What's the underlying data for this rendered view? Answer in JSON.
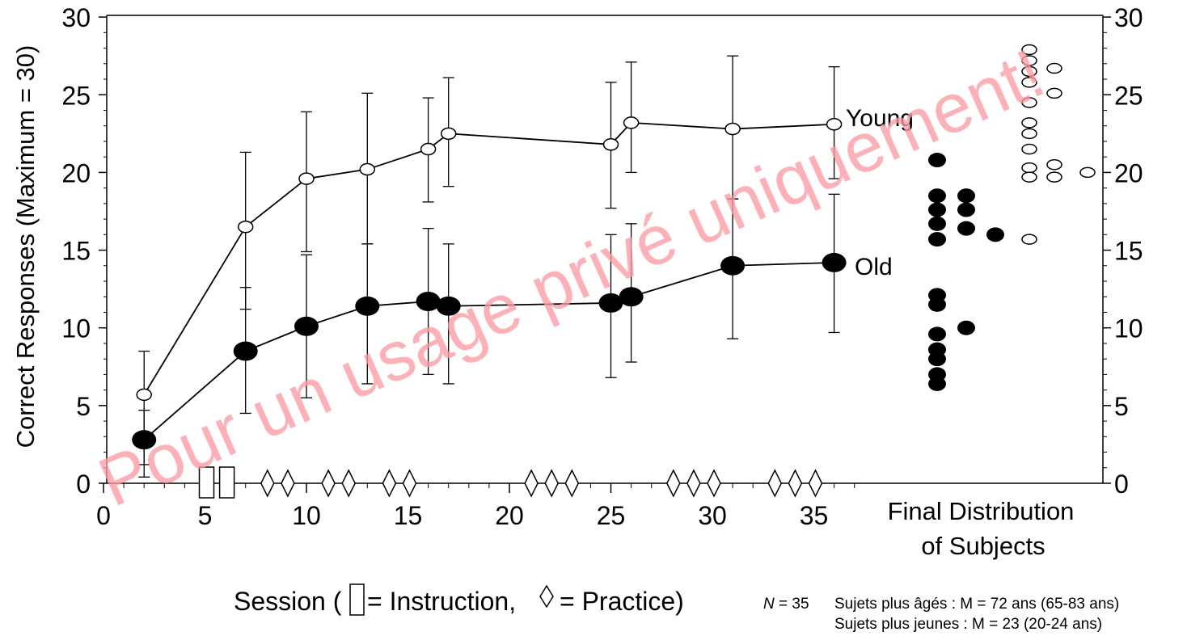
{
  "chart_data": {
    "type": "line",
    "ylabel": "Correct Responses (Maximum = 30)",
    "xlabel_prefix": "Session (",
    "xlabel_instruction": " = Instruction,",
    "xlabel_practice": " = Practice)",
    "xlim": [
      0,
      37
    ],
    "ylim": [
      0,
      30
    ],
    "x_ticks": [
      "0",
      "5",
      "10",
      "15",
      "20",
      "25",
      "30",
      "35"
    ],
    "y_ticks": [
      "0",
      "5",
      "10",
      "15",
      "20",
      "25",
      "30"
    ],
    "grid": false,
    "series": [
      {
        "name": "Young",
        "marker": "open-circle",
        "x": [
          2,
          7,
          10,
          13,
          16,
          17,
          25,
          26,
          31,
          36
        ],
        "y": [
          5.7,
          16.5,
          19.6,
          20.2,
          21.5,
          22.5,
          21.8,
          23.2,
          22.8,
          23.1
        ],
        "err_low": [
          1.2,
          11.2,
          14.9,
          15.4,
          18.1,
          19.1,
          17.7,
          20.0,
          18.3,
          19.6
        ],
        "err_high": [
          8.5,
          21.3,
          23.9,
          25.1,
          24.8,
          26.1,
          25.8,
          27.1,
          27.5,
          26.8
        ]
      },
      {
        "name": "Old",
        "marker": "filled-circle",
        "x": [
          2,
          7,
          10,
          13,
          16,
          17,
          25,
          26,
          31,
          36
        ],
        "y": [
          2.8,
          8.5,
          10.1,
          11.4,
          11.7,
          11.4,
          11.6,
          12.0,
          14.0,
          14.2
        ],
        "err_low": [
          0.4,
          4.5,
          5.5,
          6.4,
          7.0,
          6.4,
          6.8,
          7.8,
          9.3,
          9.7
        ],
        "err_high": [
          4.7,
          12.6,
          14.7,
          15.4,
          16.4,
          15.4,
          16.0,
          16.7,
          18.3,
          18.6
        ]
      }
    ],
    "instruction_sessions": [
      5,
      6
    ],
    "practice_sessions": [
      8,
      9,
      11,
      12,
      14,
      15,
      21,
      22,
      23,
      28,
      29,
      30,
      33,
      34,
      35
    ],
    "final_distribution": {
      "label_line1": "Final Distribution",
      "label_line2": "of Subjects",
      "old": [
        [
          0,
          20.8
        ],
        [
          0,
          18.5
        ],
        [
          0,
          17.6
        ],
        [
          0,
          16.7
        ],
        [
          0,
          15.7
        ],
        [
          0,
          12.1
        ],
        [
          0,
          11.5
        ],
        [
          0,
          9.6
        ],
        [
          0,
          8.6
        ],
        [
          0,
          8.0
        ],
        [
          0,
          7.0
        ],
        [
          0,
          6.4
        ],
        [
          1,
          18.5
        ],
        [
          1,
          17.6
        ],
        [
          1,
          16.4
        ],
        [
          1,
          10.0
        ],
        [
          2,
          16.0
        ]
      ],
      "young": [
        [
          0,
          27.9
        ],
        [
          0,
          27.2
        ],
        [
          0,
          26.5
        ],
        [
          0,
          25.8
        ],
        [
          0,
          24.5
        ],
        [
          0,
          23.2
        ],
        [
          0,
          22.5
        ],
        [
          0,
          21.5
        ],
        [
          0,
          20.3
        ],
        [
          0,
          19.7
        ],
        [
          0,
          15.7
        ],
        [
          1,
          26.7
        ],
        [
          1,
          25.1
        ],
        [
          1,
          20.5
        ],
        [
          1,
          19.7
        ],
        [
          2,
          20.0
        ]
      ]
    }
  },
  "footnote": {
    "n_label": "N",
    "n_value": " = 35",
    "older": "Sujets plus âgés : M = 72 ans (65-83 ans)",
    "younger": "Sujets plus jeunes : M = 23 (20-24 ans)"
  },
  "watermark": "Pour un usage privé uniquement!",
  "colors": {
    "ink": "#000000",
    "watermark": "#ff9aa2",
    "background": "#ffffff"
  }
}
